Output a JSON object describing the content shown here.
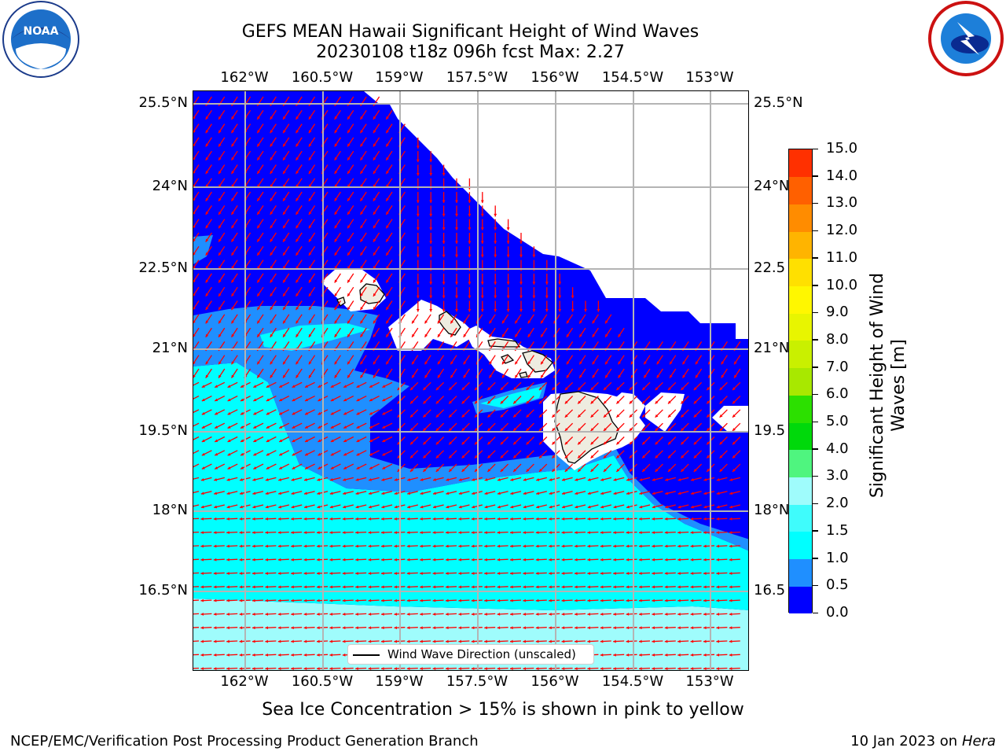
{
  "title": {
    "line1": "GEFS MEAN Hawaii Significant Height of Wind Waves",
    "line2": "20230108 t18z 096h fcst   Max: 2.27"
  },
  "logos": {
    "left": "NOAA",
    "right": "NATIONAL WEATHER SERVICE"
  },
  "map": {
    "lon_labels": [
      "162°W",
      "160.5°W",
      "159°W",
      "157.5°W",
      "156°W",
      "154.5°W",
      "153°W"
    ],
    "lat_labels_left": [
      "25.5°N",
      "24°N",
      "22.5°N",
      "21°N",
      "19.5°N",
      "18°N",
      "16.5°N"
    ],
    "lat_labels_right": [
      "25.5°N",
      "24°N",
      "22.5",
      "21°N",
      "19.5",
      "18°N",
      "16.5"
    ],
    "legend_label": "Wind Wave Direction (unscaled)",
    "colors": {
      "level_0": "#0000ff",
      "level_1": "#1f8fff",
      "level_2": "#00ffff",
      "level_3": "#9ffcfc",
      "land": "#eeece0",
      "arrow": "#ff0000",
      "grid": "#b4b4b4"
    }
  },
  "colorbar": {
    "ticks": [
      "15.0",
      "14.0",
      "13.0",
      "12.0",
      "11.0",
      "10.0",
      "9.0",
      "8.0",
      "7.0",
      "6.0",
      "5.0",
      "4.0",
      "3.0",
      "2.0",
      "1.5",
      "1.0",
      "0.5",
      "0.0"
    ],
    "label_line1": "Significant Height of Wind",
    "label_line2": "Waves [m]",
    "colors": [
      "#0000ff",
      "#1f8fff",
      "#00ffff",
      "#3ffcfc",
      "#9ffcfc",
      "#4ff57f",
      "#00d90b",
      "#2ce000",
      "#a8e800",
      "#c9f000",
      "#e8f500",
      "#fff700",
      "#ffe000",
      "#ffb400",
      "#ff8c00",
      "#ff6000",
      "#ff3000",
      "#ff0000"
    ]
  },
  "subtitle": "Sea Ice Concentration > 15% is shown in pink to yellow",
  "footer": {
    "left": "NCEP/EMC/Verification Post Processing Product Generation Branch",
    "right_date": "10 Jan 2023 on ",
    "right_host": "Hera"
  }
}
